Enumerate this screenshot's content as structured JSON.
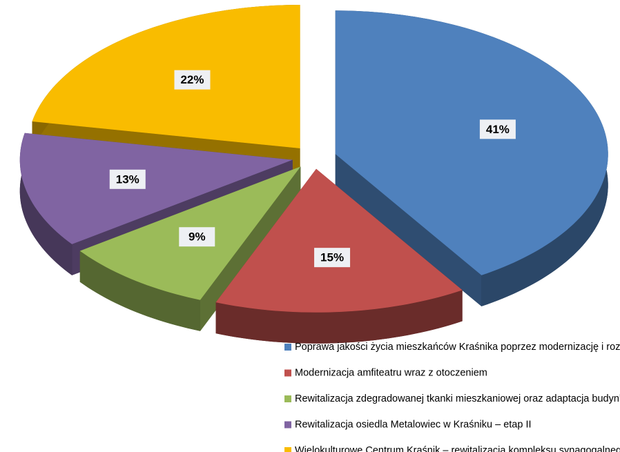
{
  "chart_data": {
    "type": "pie",
    "categories": [
      "Poprawa jakości życia mieszkańców Kraśnika poprzez modernizację i rozbudowę bazy sportowo-rekreacyjnej",
      "Modernizacja amfiteatru wraz z otoczeniem",
      "Rewitalizacja zdegradowanej tkanki mieszkaniowej oraz adaptacja budynku internatu na potrzeby socjalne",
      "Rewitalizacja osiedla Metalowiec w Kraśniku – etap II",
      "Wielokulturowe Centrum Kraśnik – rewitalizacja kompleksu synagogalnego w Kraśniku na cele kultury"
    ],
    "values": [
      41,
      15,
      9,
      13,
      22
    ],
    "value_labels": [
      "41%",
      "15%",
      "9%",
      "13%",
      "22%"
    ],
    "colors": [
      "#4f81bd",
      "#c0504d",
      "#9bbb59",
      "#8064a2",
      "#f9bc00"
    ],
    "legend": "bottom"
  }
}
